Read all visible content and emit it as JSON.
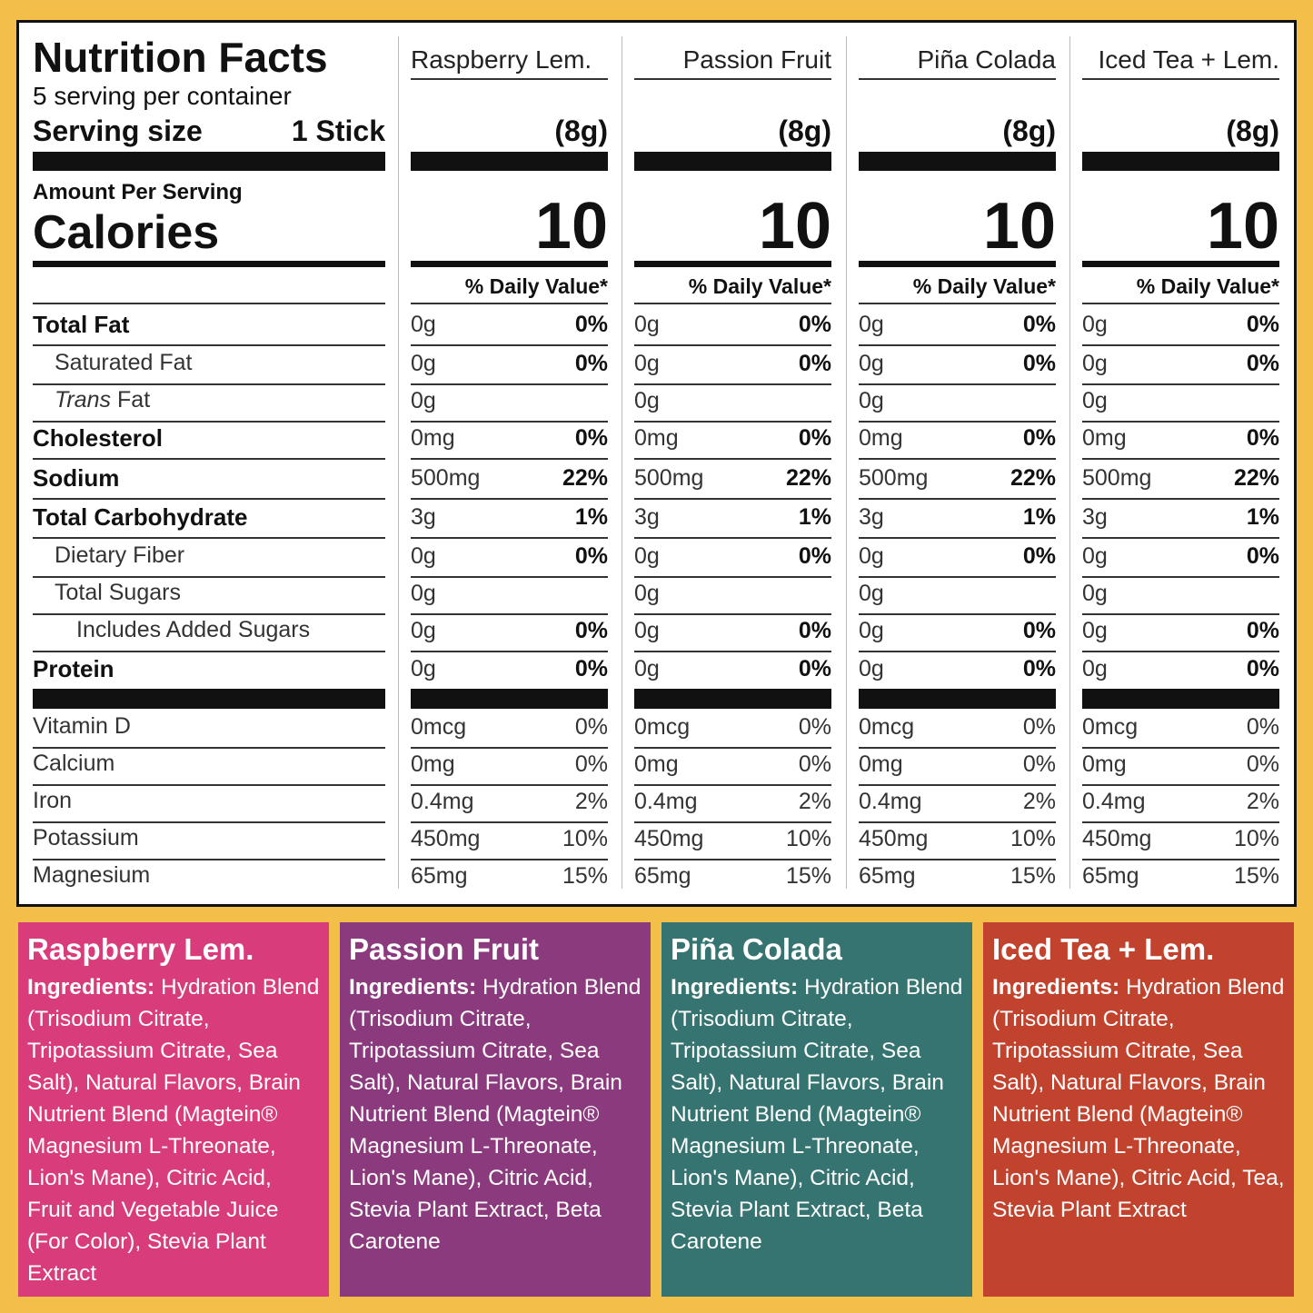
{
  "header": {
    "title": "Nutrition Facts",
    "servings": "5 serving per container",
    "serving_size_label": "Serving size",
    "serving_size_value": "1 Stick",
    "amount_per_serving": "Amount Per Serving",
    "calories_label": "Calories"
  },
  "rows": [
    {
      "label": "Total Fat",
      "style": "bold",
      "level": 0
    },
    {
      "label": "Saturated Fat",
      "style": "normal",
      "level": 1
    },
    {
      "italic": "Trans",
      "label": "Fat",
      "style": "normal",
      "level": 1
    },
    {
      "label": "Cholesterol",
      "style": "bold",
      "level": 0
    },
    {
      "label": "Sodium",
      "style": "bold",
      "level": 0
    },
    {
      "label": "Total Carbohydrate",
      "style": "bold",
      "level": 0
    },
    {
      "label": "Dietary Fiber",
      "style": "normal",
      "level": 1
    },
    {
      "label": "Total Sugars",
      "style": "normal",
      "level": 1
    },
    {
      "label": "Includes Added Sugars",
      "style": "normal",
      "level": 2
    },
    {
      "label": "Protein",
      "style": "bold",
      "level": 0
    },
    {
      "label": "Vitamin D",
      "style": "minor",
      "level": 0
    },
    {
      "label": "Calcium",
      "style": "minor",
      "level": 0
    },
    {
      "label": "Iron",
      "style": "minor",
      "level": 0
    },
    {
      "label": "Potassium",
      "style": "minor",
      "level": 0
    },
    {
      "label": "Magnesium",
      "style": "minor",
      "level": 0
    }
  ],
  "products": [
    {
      "name": "Raspberry Lem.",
      "size": "(8g)",
      "calories": "10",
      "dv_header": "% Daily Value*",
      "color": "#d83c7b",
      "values": [
        [
          "0g",
          "0%"
        ],
        [
          "0g",
          "0%"
        ],
        [
          "0g"
        ],
        [
          "0mg",
          "0%"
        ],
        [
          "500mg",
          "22%"
        ],
        [
          "3g",
          "1%"
        ],
        [
          "0g",
          "0%"
        ],
        [
          "0g"
        ],
        [
          "0g",
          "0%"
        ],
        [
          "0g",
          "0%"
        ],
        [
          "0mcg",
          "0%"
        ],
        [
          "0mg",
          "0%"
        ],
        [
          "0.4mg",
          "2%"
        ],
        [
          "450mg",
          "10%"
        ],
        [
          "65mg",
          "15%"
        ]
      ],
      "ingredients_label": "Ingredients:",
      "ingredients": "Hydration Blend (Trisodium Citrate, Tripotassium Citrate, Sea Salt), Natural Flavors, Brain Nutrient Blend (Magtein® Magnesium L-Threonate, Lion's Mane), Citric Acid, Fruit and Vegetable Juice (For Color), Stevia Plant Extract"
    },
    {
      "name": "Passion Fruit",
      "size": "(8g)",
      "calories": "10",
      "dv_header": "% Daily Value*",
      "color": "#8a3a7d",
      "values": [
        [
          "0g",
          "0%"
        ],
        [
          "0g",
          "0%"
        ],
        [
          "0g"
        ],
        [
          "0mg",
          "0%"
        ],
        [
          "500mg",
          "22%"
        ],
        [
          "3g",
          "1%"
        ],
        [
          "0g",
          "0%"
        ],
        [
          "0g"
        ],
        [
          "0g",
          "0%"
        ],
        [
          "0g",
          "0%"
        ],
        [
          "0mcg",
          "0%"
        ],
        [
          "0mg",
          "0%"
        ],
        [
          "0.4mg",
          "2%"
        ],
        [
          "450mg",
          "10%"
        ],
        [
          "65mg",
          "15%"
        ]
      ],
      "ingredients_label": "Ingredients:",
      "ingredients": "Hydration Blend (Trisodium Citrate, Tripotassium Citrate, Sea Salt), Natural Flavors, Brain Nutrient Blend (Magtein® Magnesium L-Threonate, Lion's Mane), Citric Acid, Stevia Plant Extract, Beta Carotene"
    },
    {
      "name": "Piña Colada",
      "size": "(8g)",
      "calories": "10",
      "dv_header": "% Daily Value*",
      "color": "#357471",
      "values": [
        [
          "0g",
          "0%"
        ],
        [
          "0g",
          "0%"
        ],
        [
          "0g"
        ],
        [
          "0mg",
          "0%"
        ],
        [
          "500mg",
          "22%"
        ],
        [
          "3g",
          "1%"
        ],
        [
          "0g",
          "0%"
        ],
        [
          "0g"
        ],
        [
          "0g",
          "0%"
        ],
        [
          "0g",
          "0%"
        ],
        [
          "0mcg",
          "0%"
        ],
        [
          "0mg",
          "0%"
        ],
        [
          "0.4mg",
          "2%"
        ],
        [
          "450mg",
          "10%"
        ],
        [
          "65mg",
          "15%"
        ]
      ],
      "ingredients_label": "Ingredients:",
      "ingredients": "Hydration Blend (Trisodium Citrate, Tripotassium Citrate, Sea Salt), Natural Flavors, Brain Nutrient Blend (Magtein® Magnesium L-Threonate, Lion's Mane), Citric Acid, Stevia Plant Extract, Beta Carotene"
    },
    {
      "name": "Iced Tea + Lem.",
      "size": "(8g)",
      "calories": "10",
      "dv_header": "% Daily Value*",
      "color": "#c1432e",
      "values": [
        [
          "0g",
          "0%"
        ],
        [
          "0g",
          "0%"
        ],
        [
          "0g"
        ],
        [
          "0mg",
          "0%"
        ],
        [
          "500mg",
          "22%"
        ],
        [
          "3g",
          "1%"
        ],
        [
          "0g",
          "0%"
        ],
        [
          "0g"
        ],
        [
          "0g",
          "0%"
        ],
        [
          "0g",
          "0%"
        ],
        [
          "0mcg",
          "0%"
        ],
        [
          "0mg",
          "0%"
        ],
        [
          "0.4mg",
          "2%"
        ],
        [
          "450mg",
          "10%"
        ],
        [
          "65mg",
          "15%"
        ]
      ],
      "ingredients_label": "Ingredients:",
      "ingredients": "Hydration Blend (Trisodium Citrate, Tripotassium Citrate, Sea Salt), Natural Flavors, Brain Nutrient Blend (Magtein® Magnesium L-Threonate, Lion's Mane), Citric Acid, Tea, Stevia Plant Extract"
    }
  ]
}
